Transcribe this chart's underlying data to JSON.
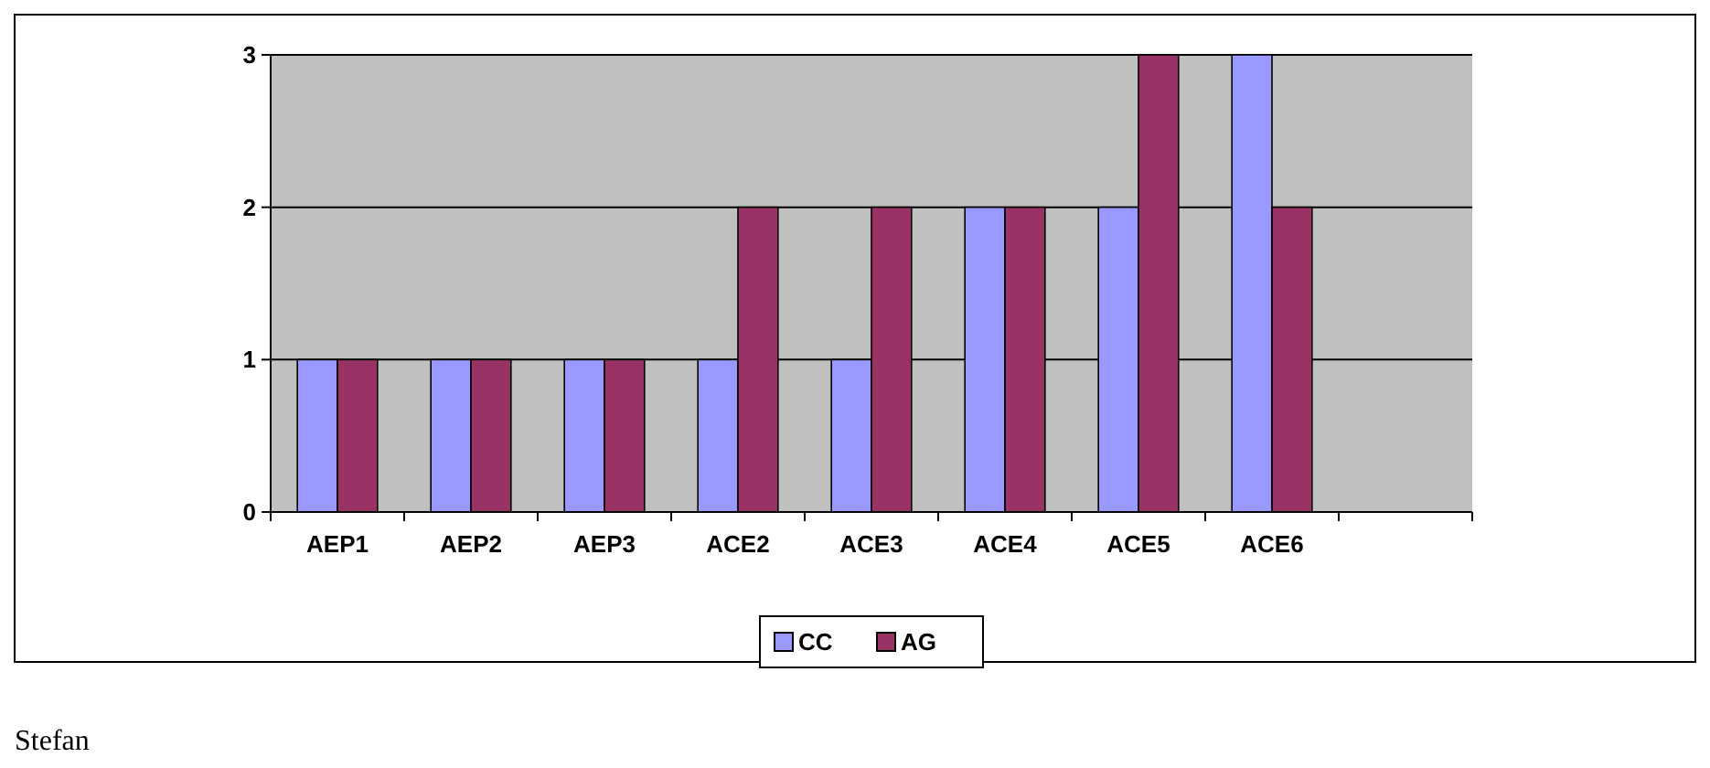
{
  "chart_data": {
    "type": "bar",
    "categories": [
      "AEP1",
      "AEP2",
      "AEP3",
      "ACE2",
      "ACE3",
      "ACE4",
      "ACE5",
      "ACE6",
      null
    ],
    "series": [
      {
        "name": "CC",
        "color": "#9999ff",
        "values": [
          1,
          1,
          1,
          1,
          1,
          2,
          2,
          3,
          null
        ]
      },
      {
        "name": "AG",
        "color": "#993366",
        "values": [
          1,
          1,
          1,
          2,
          2,
          2,
          3,
          2,
          null
        ]
      }
    ],
    "ylim": [
      0,
      3
    ],
    "yticks": [
      0,
      1,
      2,
      3
    ],
    "grid": "y",
    "legend": "bottom",
    "annotations": [
      "Stefan"
    ]
  }
}
